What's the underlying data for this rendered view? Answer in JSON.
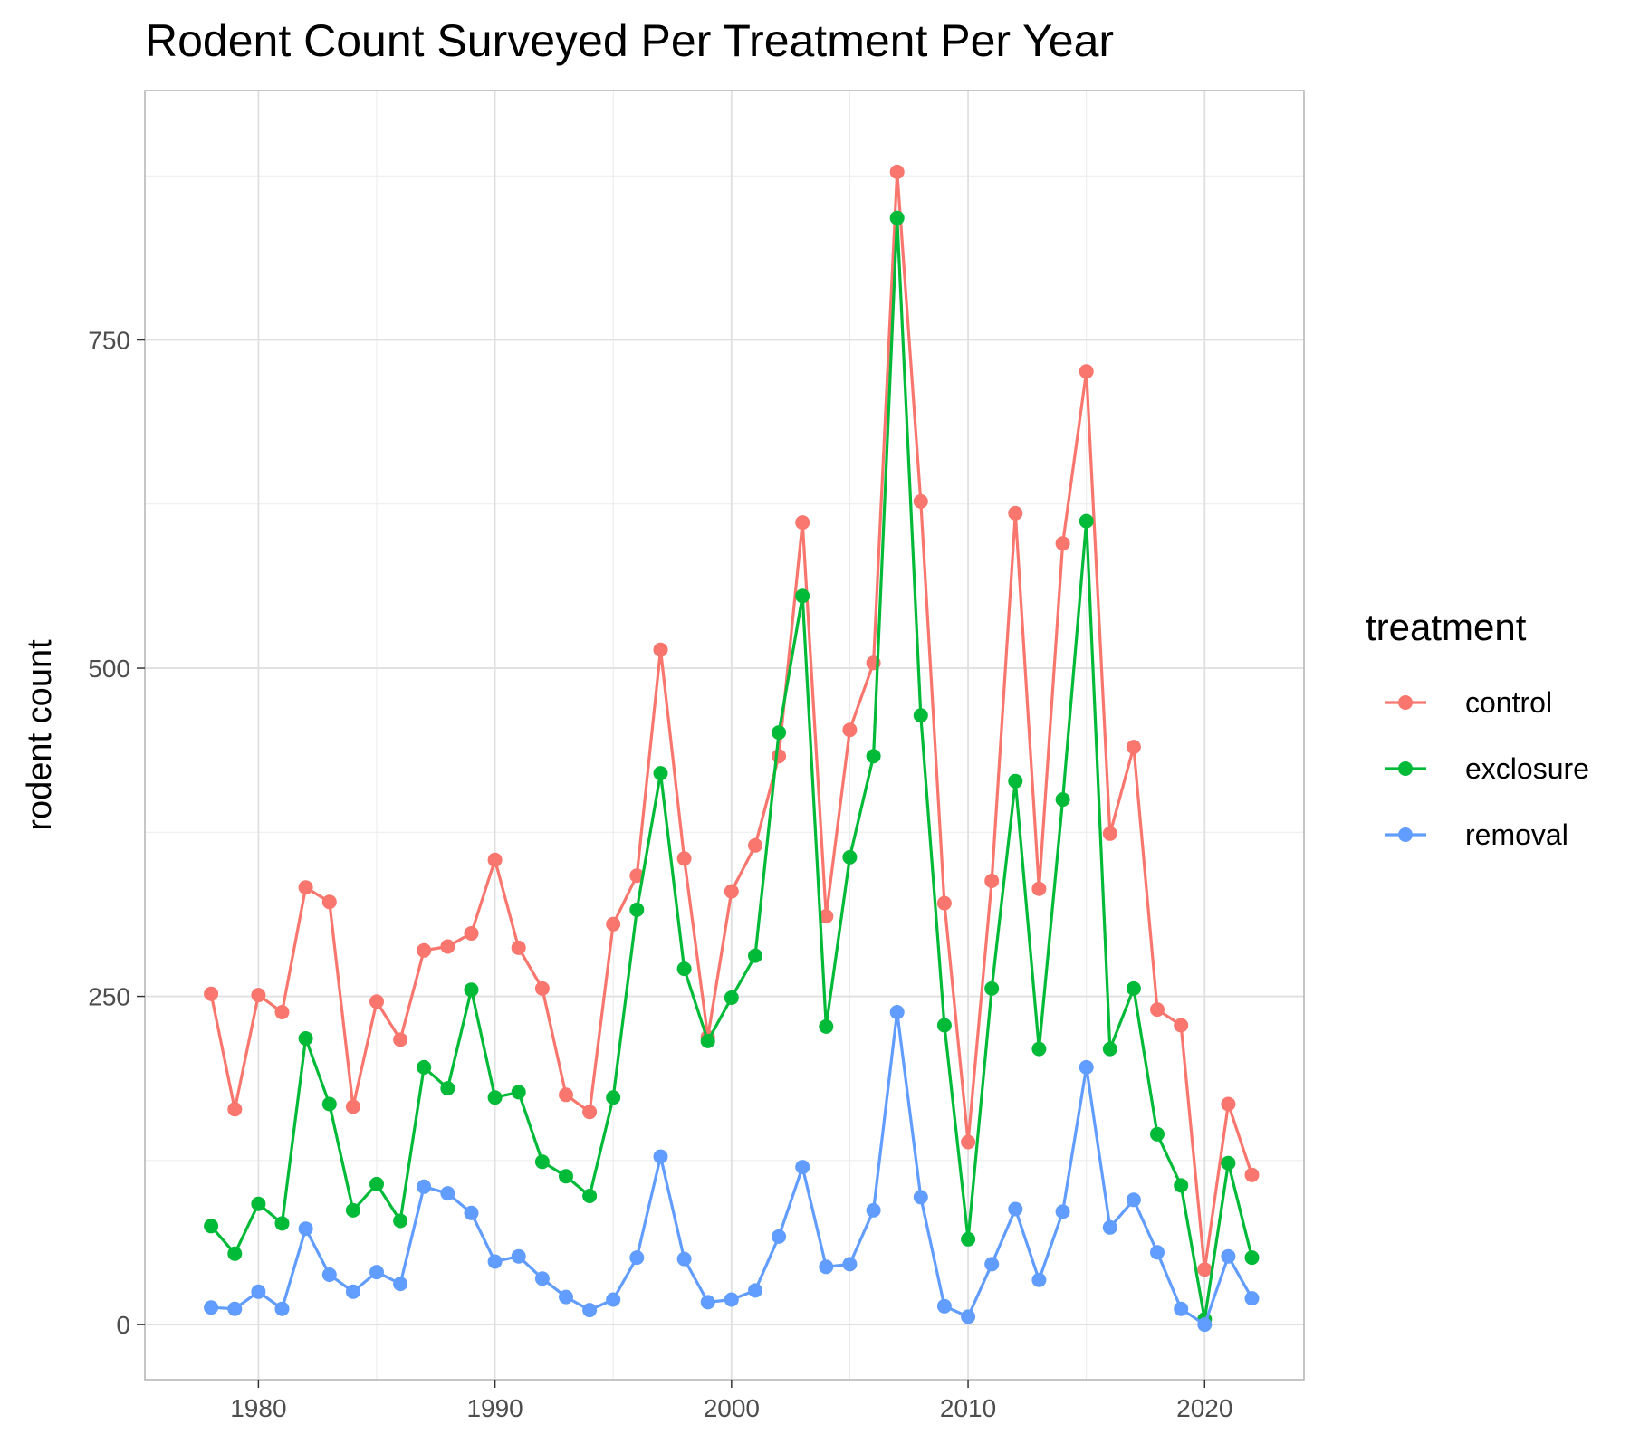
{
  "chart_data": {
    "type": "line",
    "title": "Rodent Count Surveyed Per Treatment Per Year",
    "xlabel": "",
    "ylabel": "rodent count",
    "xlim": [
      1975.2,
      2024.2
    ],
    "ylim": [
      -42,
      940
    ],
    "x_ticks": [
      1980,
      1990,
      2000,
      2010,
      2020
    ],
    "y_ticks": [
      0,
      250,
      500,
      750
    ],
    "grid": true,
    "legend": {
      "title": "treatment",
      "position": "right"
    },
    "x": [
      1978,
      1979,
      1980,
      1981,
      1982,
      1983,
      1984,
      1985,
      1986,
      1987,
      1988,
      1989,
      1990,
      1991,
      1992,
      1993,
      1994,
      1995,
      1996,
      1997,
      1998,
      1999,
      2000,
      2001,
      2002,
      2003,
      2004,
      2005,
      2006,
      2007,
      2008,
      2009,
      2010,
      2011,
      2012,
      2013,
      2014,
      2015,
      2016,
      2017,
      2018,
      2019,
      2020,
      2021,
      2022
    ],
    "series": [
      {
        "name": "control",
        "color": "#F8766D",
        "values": [
          252,
          164,
          251,
          238,
          333,
          322,
          166,
          246,
          217,
          285,
          288,
          298,
          354,
          287,
          256,
          175,
          162,
          305,
          342,
          514,
          355,
          219,
          330,
          365,
          433,
          611,
          311,
          453,
          504,
          878,
          627,
          321,
          139,
          338,
          618,
          332,
          595,
          726,
          374,
          440,
          240,
          228,
          42,
          168,
          114
        ]
      },
      {
        "name": "exclosure",
        "color": "#00BA38",
        "values": [
          75,
          54,
          92,
          77,
          218,
          168,
          87,
          107,
          79,
          196,
          180,
          255,
          173,
          177,
          124,
          113,
          98,
          173,
          316,
          420,
          271,
          216,
          249,
          281,
          451,
          555,
          227,
          356,
          433,
          843,
          464,
          228,
          65,
          256,
          414,
          210,
          400,
          612,
          210,
          256,
          145,
          106,
          4,
          123,
          51
        ]
      },
      {
        "name": "removal",
        "color": "#619CFF",
        "values": [
          13,
          12,
          25,
          12,
          73,
          38,
          25,
          40,
          31,
          105,
          100,
          85,
          48,
          52,
          35,
          21,
          11,
          19,
          51,
          128,
          50,
          17,
          19,
          26,
          67,
          120,
          44,
          46,
          87,
          238,
          97,
          14,
          6,
          46,
          88,
          34,
          86,
          196,
          74,
          95,
          55,
          12,
          0,
          52,
          20
        ]
      }
    ]
  }
}
